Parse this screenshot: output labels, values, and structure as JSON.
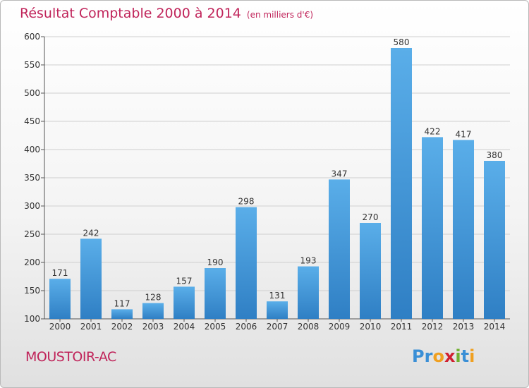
{
  "header": {
    "title": "Résultat Comptable 2000 à 2014",
    "subtitle": "(en milliers d'€)"
  },
  "footer": {
    "commune": "MOUSTOIR-AC",
    "brand": "Proxiti",
    "brand_letters": [
      "P",
      "r",
      "o",
      "x",
      "i",
      "t",
      "i"
    ],
    "brand_colors": [
      "#3a8fd6",
      "#3a8fd6",
      "#f0a020",
      "#d02030",
      "#70b030",
      "#3a8fd6",
      "#f0a020"
    ]
  },
  "colors": {
    "bar_light": "#5aaee9",
    "bar_dark": "#2f7fc4",
    "title": "#c0245a",
    "grid": "#cfcfcf"
  },
  "chart_data": {
    "type": "bar",
    "title": "Résultat Comptable 2000 à 2014",
    "ylabel": "",
    "xlabel": "",
    "categories": [
      "2000",
      "2001",
      "2002",
      "2003",
      "2004",
      "2005",
      "2006",
      "2007",
      "2008",
      "2009",
      "2010",
      "2011",
      "2012",
      "2013",
      "2014"
    ],
    "values": [
      171,
      242,
      117,
      128,
      157,
      190,
      298,
      131,
      193,
      347,
      270,
      580,
      422,
      417,
      380
    ],
    "ylim": [
      100,
      600
    ],
    "yticks": [
      100,
      150,
      200,
      250,
      300,
      350,
      400,
      450,
      500,
      550,
      600
    ],
    "grid": true,
    "legend": "none"
  }
}
